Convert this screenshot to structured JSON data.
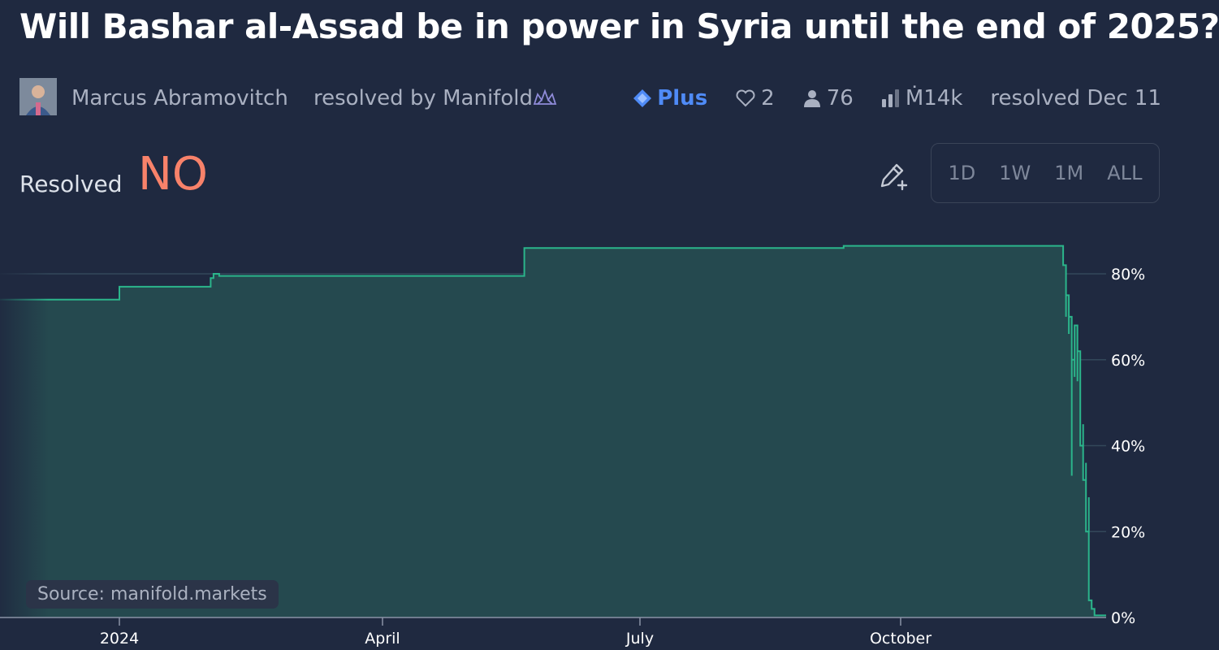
{
  "market": {
    "question": "Will Bashar al-Assad be in power in Syria until the end of 2025?",
    "author": "Marcus Abramovitch",
    "resolver": "resolved by Manifold",
    "plus_label": "Plus",
    "likes": "2",
    "traders": "76",
    "volume": "Ṁ14k",
    "resolved_date": "resolved Dec 11",
    "resolved_label": "Resolved",
    "resolution": "NO"
  },
  "range_buttons": [
    "1D",
    "1W",
    "1M",
    "ALL"
  ],
  "source": "Source: manifold.markets",
  "icons": {
    "avatar": "avatar",
    "crown": "crown-icon",
    "plus": "diamond-icon",
    "like": "heart-icon",
    "traders": "person-icon",
    "volume": "bar-chart-icon",
    "edit": "pencil-plus-icon"
  },
  "colors": {
    "background": "#1f2940",
    "line": "#2bb58b",
    "fill": "#25494f",
    "no": "#f8826a",
    "plus": "#4f8bf7"
  },
  "chart_data": {
    "type": "area",
    "x_ticks": [
      "2024",
      "April",
      "July",
      "October"
    ],
    "y_ticks": [
      "0%",
      "20%",
      "40%",
      "60%",
      "80%"
    ],
    "ylim": [
      0,
      100
    ],
    "grid": true,
    "x": [
      "2023-11-14",
      "2024-01-01",
      "2024-01-01",
      "2024-02-01",
      "2024-02-02",
      "2024-02-03",
      "2024-02-05",
      "2024-05-22",
      "2024-05-22",
      "2024-09-10",
      "2024-09-11",
      "2024-11-26",
      "2024-11-27",
      "2024-11-28",
      "2024-11-28",
      "2024-11-29",
      "2024-11-29",
      "2024-11-30",
      "2024-11-30",
      "2024-12-01",
      "2024-12-01",
      "2024-12-02",
      "2024-12-02",
      "2024-12-03",
      "2024-12-04",
      "2024-12-04",
      "2024-12-05",
      "2024-12-05",
      "2024-12-06",
      "2024-12-06",
      "2024-12-07",
      "2024-12-08",
      "2024-12-11"
    ],
    "values": [
      74,
      74,
      77,
      77,
      79,
      80,
      79.5,
      79.5,
      86,
      86,
      86.5,
      86.5,
      82,
      70,
      75,
      66,
      70,
      33,
      60,
      56,
      68,
      55,
      62,
      40,
      45,
      32,
      36,
      20,
      28,
      4,
      2,
      0.5,
      0.5
    ]
  }
}
